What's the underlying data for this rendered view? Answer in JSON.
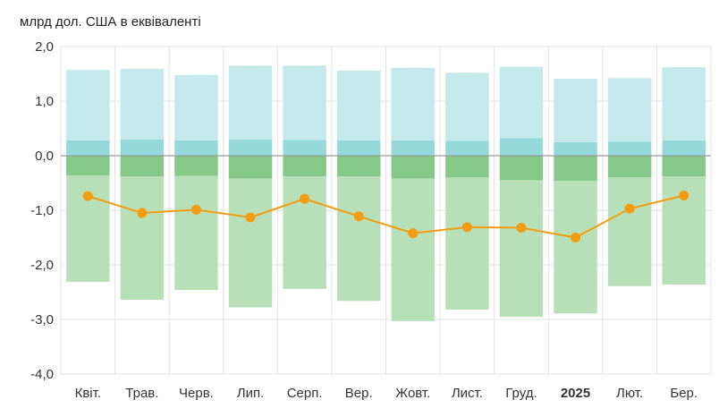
{
  "chart_data": {
    "type": "bar",
    "ylabel": "млрд дол. США в еквіваленті",
    "ylim": [
      -4.0,
      2.0
    ],
    "yticks": [
      "2,0",
      "1,0",
      "0,0",
      "-1,0",
      "-2,0",
      "-3,0",
      "-4,0"
    ],
    "ytick_values": [
      2,
      1,
      0,
      -1,
      -2,
      -3,
      -4
    ],
    "categories": [
      "Квіт.",
      "Трав.",
      "Черв.",
      "Лип.",
      "Серп.",
      "Вер.",
      "Жовт.",
      "Лист.",
      "Груд.",
      "2025",
      "Лют.",
      "Бер."
    ],
    "bold_categories": [
      "2025"
    ],
    "grid": true,
    "stacked": true,
    "series": [
      {
        "values": [
          0.28,
          0.3,
          0.28,
          0.3,
          0.29,
          0.28,
          0.28,
          0.27,
          0.32,
          0.25,
          0.26,
          0.28
        ],
        "color": "#95d9db"
      },
      {
        "values": [
          1.29,
          1.29,
          1.2,
          1.35,
          1.36,
          1.28,
          1.33,
          1.25,
          1.31,
          1.16,
          1.16,
          1.34
        ],
        "color": "#c3e9eb"
      },
      {
        "values": [
          -0.36,
          -0.38,
          -0.37,
          -0.42,
          -0.38,
          -0.38,
          -0.42,
          -0.4,
          -0.45,
          -0.46,
          -0.4,
          -0.38
        ],
        "color": "#85c888"
      },
      {
        "values": [
          -1.95,
          -2.26,
          -2.09,
          -2.36,
          -2.06,
          -2.28,
          -2.61,
          -2.42,
          -2.5,
          -2.43,
          -1.99,
          -1.98
        ],
        "color": "#b7e0b8"
      },
      {
        "type": "line",
        "values": [
          -0.74,
          -1.05,
          -0.99,
          -1.13,
          -0.79,
          -1.11,
          -1.42,
          -1.31,
          -1.32,
          -1.5,
          -0.97,
          -0.73
        ],
        "color": "#f39c12"
      }
    ]
  }
}
